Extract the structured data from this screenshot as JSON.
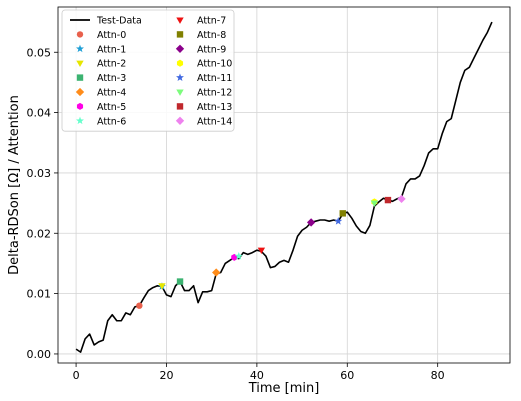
{
  "chart_data": {
    "type": "line",
    "xlabel": "Time [min]",
    "ylabel": "Delta-RDSon [Ω] / Attention",
    "xlim": [
      -4,
      96
    ],
    "ylim": [
      -0.0015,
      0.0575
    ],
    "xticks": [
      0,
      20,
      40,
      60,
      80
    ],
    "yticks": [
      0.0,
      0.01,
      0.02,
      0.03,
      0.04,
      0.05
    ],
    "ytick_labels": [
      "0.00",
      "0.01",
      "0.02",
      "0.03",
      "0.04",
      "0.05"
    ],
    "grid": true,
    "legend_position": "top-left",
    "series": [
      {
        "name": "Test-Data",
        "kind": "line",
        "color": "#000000",
        "x": [
          0,
          1,
          2,
          3,
          4,
          5,
          6,
          7,
          8,
          9,
          10,
          11,
          12,
          13,
          14,
          15,
          16,
          17,
          18,
          19,
          20,
          21,
          22,
          23,
          24,
          25,
          26,
          27,
          28,
          29,
          30,
          31,
          32,
          33,
          34,
          35,
          36,
          37,
          38,
          39,
          40,
          41,
          42,
          43,
          44,
          45,
          46,
          47,
          48,
          49,
          50,
          51,
          52,
          53,
          54,
          55,
          56,
          57,
          58,
          59,
          60,
          61,
          62,
          63,
          64,
          65,
          66,
          67,
          68,
          69,
          70,
          71,
          72,
          73,
          74,
          75,
          76,
          77,
          78,
          79,
          80,
          81,
          82,
          83,
          84,
          85,
          86,
          87,
          88,
          89,
          90,
          91,
          92
        ],
        "y": [
          0.0008,
          0.0003,
          0.0025,
          0.0033,
          0.0015,
          0.002,
          0.0023,
          0.0055,
          0.0065,
          0.0055,
          0.0055,
          0.0068,
          0.0065,
          0.0078,
          0.008,
          0.0093,
          0.0105,
          0.011,
          0.0113,
          0.0112,
          0.0098,
          0.0095,
          0.0113,
          0.012,
          0.0105,
          0.0105,
          0.0113,
          0.0085,
          0.0103,
          0.0103,
          0.0105,
          0.0133,
          0.0135,
          0.015,
          0.0155,
          0.016,
          0.0158,
          0.0168,
          0.0165,
          0.0168,
          0.0172,
          0.017,
          0.0162,
          0.0143,
          0.0145,
          0.0152,
          0.0155,
          0.0152,
          0.0172,
          0.0195,
          0.0205,
          0.021,
          0.0218,
          0.022,
          0.0222,
          0.0222,
          0.022,
          0.0222,
          0.022,
          0.0232,
          0.0235,
          0.0225,
          0.0212,
          0.0203,
          0.02,
          0.0213,
          0.0245,
          0.0252,
          0.0258,
          0.0255,
          0.0253,
          0.0257,
          0.026,
          0.0282,
          0.029,
          0.029,
          0.0295,
          0.0312,
          0.0333,
          0.034,
          0.034,
          0.0365,
          0.0385,
          0.039,
          0.042,
          0.045,
          0.047,
          0.0475,
          0.049,
          0.0505,
          0.052,
          0.0533,
          0.055
        ]
      },
      {
        "name": "Attn-0",
        "kind": "marker",
        "marker": "circle",
        "color": "#e8604c",
        "x": 14,
        "y": 0.008
      },
      {
        "name": "Attn-1",
        "kind": "marker",
        "marker": "star",
        "color": "#1f9fd6",
        "x": 19,
        "y": 0.0112
      },
      {
        "name": "Attn-2",
        "kind": "marker",
        "marker": "triangle-down",
        "color": "#e6e600",
        "x": 19,
        "y": 0.0113
      },
      {
        "name": "Attn-3",
        "kind": "marker",
        "marker": "square",
        "color": "#3cb371",
        "x": 23,
        "y": 0.012
      },
      {
        "name": "Attn-4",
        "kind": "marker",
        "marker": "diamond",
        "color": "#ff8c1a",
        "x": 31,
        "y": 0.0135
      },
      {
        "name": "Attn-5",
        "kind": "marker",
        "marker": "hexagon",
        "color": "#ff00e6",
        "x": 35,
        "y": 0.016
      },
      {
        "name": "Attn-6",
        "kind": "marker",
        "marker": "star",
        "color": "#66ffcc",
        "x": 36,
        "y": 0.0162
      },
      {
        "name": "Attn-7",
        "kind": "marker",
        "marker": "triangle-down",
        "color": "#ee1111",
        "x": 41,
        "y": 0.0172
      },
      {
        "name": "Attn-8",
        "kind": "marker",
        "marker": "square",
        "color": "#808000",
        "x": 59,
        "y": 0.0233
      },
      {
        "name": "Attn-9",
        "kind": "marker",
        "marker": "diamond",
        "color": "#8b008b",
        "x": 52,
        "y": 0.0218
      },
      {
        "name": "Attn-10",
        "kind": "marker",
        "marker": "hexagon",
        "color": "#ffff00",
        "x": 66,
        "y": 0.0252
      },
      {
        "name": "Attn-11",
        "kind": "marker",
        "marker": "star",
        "color": "#4169e1",
        "x": 58,
        "y": 0.022
      },
      {
        "name": "Attn-12",
        "kind": "marker",
        "marker": "triangle-down",
        "color": "#7cfc7c",
        "x": 66,
        "y": 0.025
      },
      {
        "name": "Attn-13",
        "kind": "marker",
        "marker": "square",
        "color": "#c0282d",
        "x": 69,
        "y": 0.0255
      },
      {
        "name": "Attn-14",
        "kind": "marker",
        "marker": "diamond",
        "color": "#ee82ee",
        "x": 72,
        "y": 0.0257
      }
    ]
  }
}
